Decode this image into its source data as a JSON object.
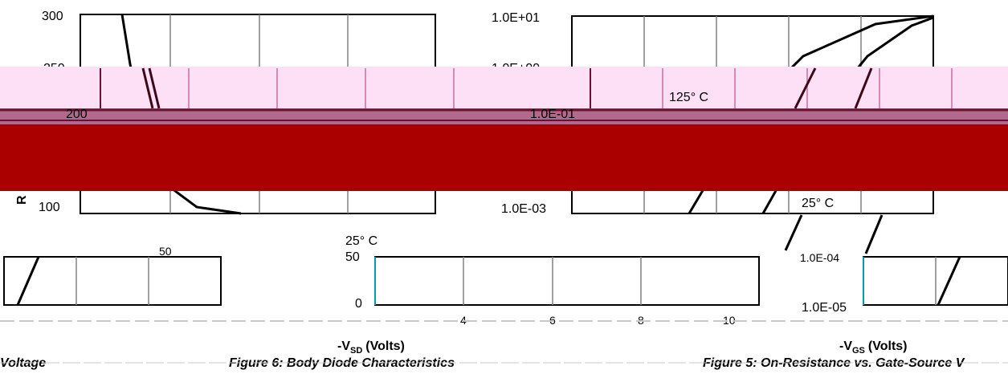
{
  "colors": {
    "band_red": "#aa0000",
    "band_pink": "#fde0f6",
    "band_mauve": "#b06a8e",
    "dark_red": "#6b1030",
    "axis": "#000000",
    "grid": "#808080",
    "teal_tick": "#00a0a0"
  },
  "chart_data": [
    {
      "name": "top-left",
      "type": "line",
      "ylim": [
        100,
        300
      ],
      "y_ticks": [
        "300",
        "250",
        "200",
        "100"
      ],
      "ylabel_fragment": "R",
      "series": [
        {
          "values_note": "",
          "x": [
            0.5,
            0.6,
            0.75,
            0.9,
            1.2,
            2
          ],
          "y": [
            300,
            260,
            220,
            180,
            130,
            100
          ]
        }
      ]
    },
    {
      "name": "top-right",
      "type": "line",
      "y_scale": "log",
      "y_ticks": [
        "1.0E+01",
        "1.0E+00",
        "1.0E-01",
        "1.0E-03"
      ],
      "annotations": [
        "125° C",
        "25° C"
      ],
      "series": [
        {
          "x": [
            0.6,
            1.0,
            1.5,
            2.0,
            2.5
          ],
          "y": [
            0.001,
            0.01,
            0.1,
            1,
            10
          ]
        },
        {
          "x": [
            1.0,
            1.5,
            2.0,
            2.5,
            3.0
          ],
          "y": [
            0.001,
            0.01,
            0.1,
            1,
            10
          ]
        }
      ]
    },
    {
      "name": "bottom-middle",
      "type": "line",
      "title": "Figure 6: Body Diode Characteristics",
      "xlabel": "-V",
      "xlabel_sub": "SD",
      "xlabel_unit": "(Volts)",
      "y_ticks": [
        "50",
        "0"
      ],
      "x_ticks": [
        "4",
        "6",
        "8",
        "10"
      ],
      "annotations": [
        "25° C"
      ]
    },
    {
      "name": "bottom-right",
      "type": "line",
      "title": "Figure 5: On-Resistance vs. Gate-Source V",
      "xlabel": "-V",
      "xlabel_sub": "GS",
      "xlabel_unit": "(Volts)",
      "y_ticks": [
        "1.0E-04",
        "1.0E-05"
      ]
    },
    {
      "name": "bottom-left",
      "type": "line",
      "title": "Voltage",
      "y_ticks": [
        "50"
      ]
    }
  ]
}
